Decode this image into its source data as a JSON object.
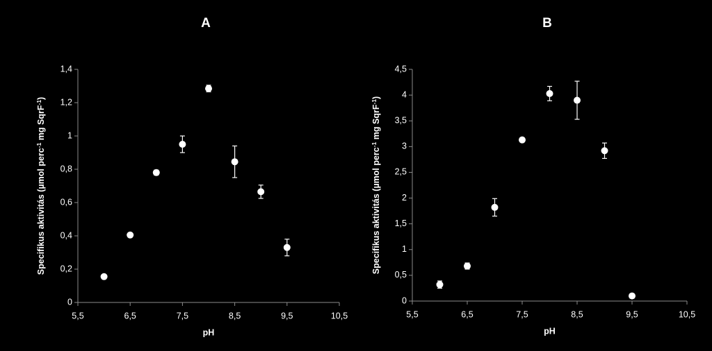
{
  "chart_data": [
    {
      "type": "scatter",
      "title": "A",
      "xlabel": "pH",
      "ylabel_parts": [
        "Specifikus aktivitás (µmol perc",
        "-1",
        " mg SqrF",
        "-1",
        ")"
      ],
      "xlim": [
        5.5,
        10.5
      ],
      "ylim": [
        0,
        1.4
      ],
      "x_ticks": [
        5.5,
        6.5,
        7.5,
        8.5,
        9.5,
        10.5
      ],
      "x_tick_labels": [
        "5,5",
        "6,5",
        "7,5",
        "8,5",
        "9,5",
        "10,5"
      ],
      "y_ticks": [
        0,
        0.2,
        0.4,
        0.6,
        0.8,
        1,
        1.2,
        1.4
      ],
      "y_tick_labels": [
        "0",
        "0,2",
        "0,4",
        "0,6",
        "0,8",
        "1",
        "1,2",
        "1,4"
      ],
      "grid": false,
      "points": [
        {
          "x": 6.0,
          "y": 0.155,
          "err": 0.01
        },
        {
          "x": 6.5,
          "y": 0.405,
          "err": 0.01
        },
        {
          "x": 7.0,
          "y": 0.78,
          "err": 0.015
        },
        {
          "x": 7.5,
          "y": 0.95,
          "err": 0.05
        },
        {
          "x": 8.0,
          "y": 1.285,
          "err": 0.02
        },
        {
          "x": 8.5,
          "y": 0.845,
          "err": 0.095
        },
        {
          "x": 9.0,
          "y": 0.665,
          "err": 0.04
        },
        {
          "x": 9.5,
          "y": 0.33,
          "err": 0.05
        }
      ]
    },
    {
      "type": "scatter",
      "title": "B",
      "xlabel": "pH",
      "ylabel_parts": [
        "Specifikus aktivitás (µmol perc",
        "-1",
        " mg SqrF",
        "-1",
        ")"
      ],
      "xlim": [
        5.5,
        10.5
      ],
      "ylim": [
        0,
        4.5
      ],
      "x_ticks": [
        5.5,
        6.5,
        7.5,
        8.5,
        9.5,
        10.5
      ],
      "x_tick_labels": [
        "5,5",
        "6,5",
        "7,5",
        "8,5",
        "9,5",
        "10,5"
      ],
      "y_ticks": [
        0,
        0.5,
        1,
        1.5,
        2,
        2.5,
        3,
        3.5,
        4,
        4.5
      ],
      "y_tick_labels": [
        "0",
        "0,5",
        "1",
        "1,5",
        "2",
        "2,5",
        "3",
        "3,5",
        "4",
        "4,5"
      ],
      "grid": false,
      "points": [
        {
          "x": 6.0,
          "y": 0.32,
          "err": 0.07
        },
        {
          "x": 6.5,
          "y": 0.68,
          "err": 0.06
        },
        {
          "x": 7.0,
          "y": 1.82,
          "err": 0.17
        },
        {
          "x": 7.5,
          "y": 3.13,
          "err": 0.03
        },
        {
          "x": 8.0,
          "y": 4.03,
          "err": 0.14
        },
        {
          "x": 8.5,
          "y": 3.9,
          "err": 0.37
        },
        {
          "x": 9.0,
          "y": 2.92,
          "err": 0.15
        },
        {
          "x": 9.5,
          "y": 0.1,
          "err": 0.02
        }
      ]
    }
  ],
  "colors": {
    "background": "#000000",
    "foreground": "#ffffff",
    "axis": "#8c8c8c"
  }
}
